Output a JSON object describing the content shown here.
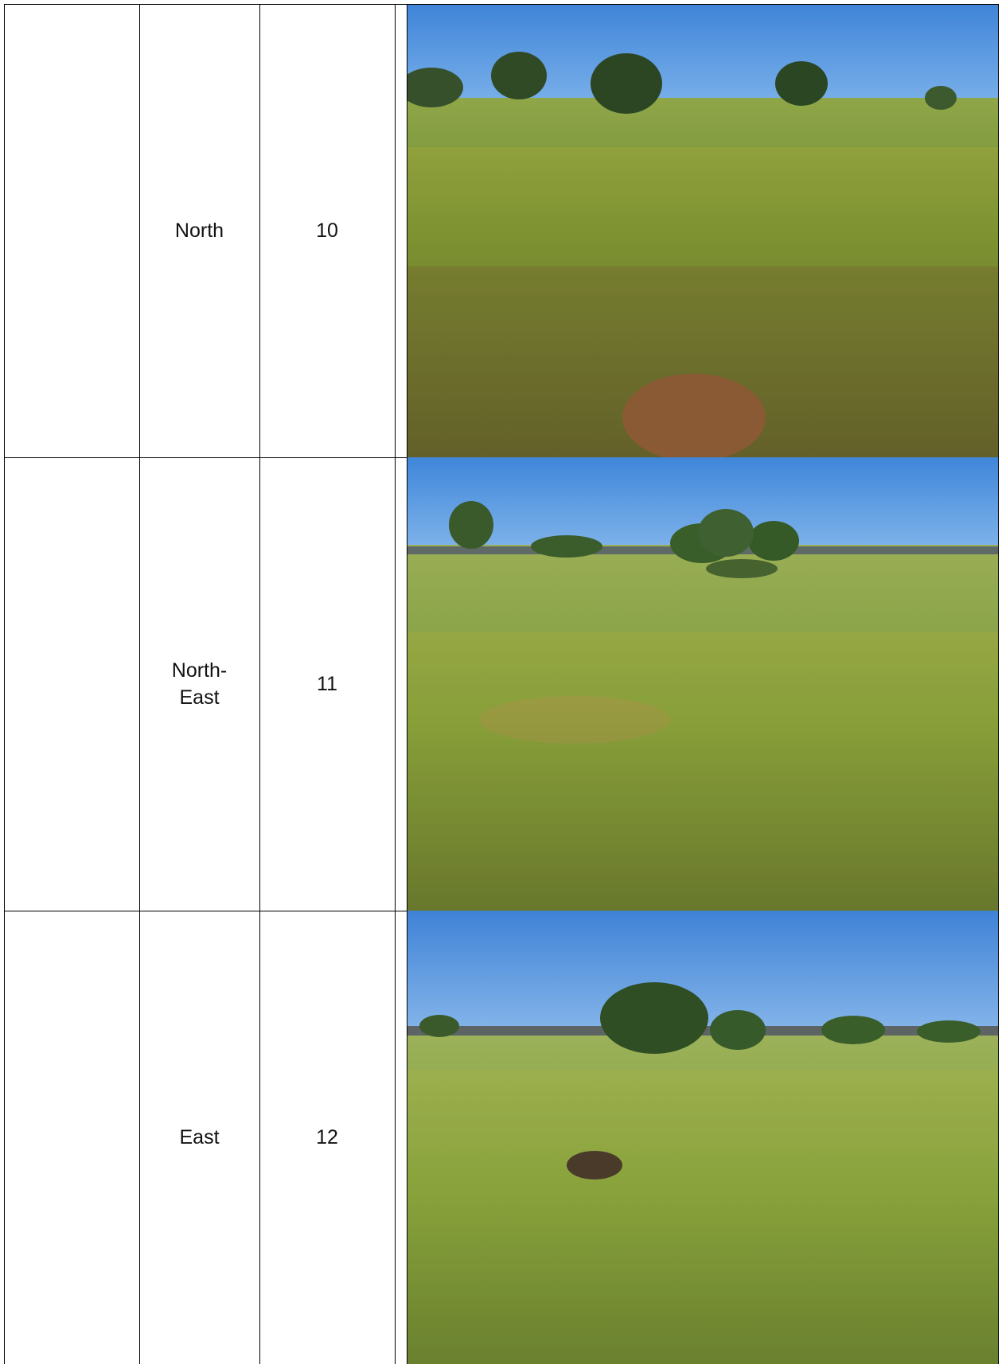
{
  "rows": [
    {
      "direction": "North",
      "number": "10",
      "photo": "grassland-north-photo"
    },
    {
      "direction": "North-\nEast",
      "number": "11",
      "photo": "grassland-north-east-photo"
    },
    {
      "direction": "East",
      "number": "12",
      "photo": "grassland-east-photo"
    }
  ],
  "colors": {
    "sky": "#4a90e2",
    "grass": "#7a9a3a",
    "flowers": "#e8c21a",
    "border": "#000000"
  }
}
